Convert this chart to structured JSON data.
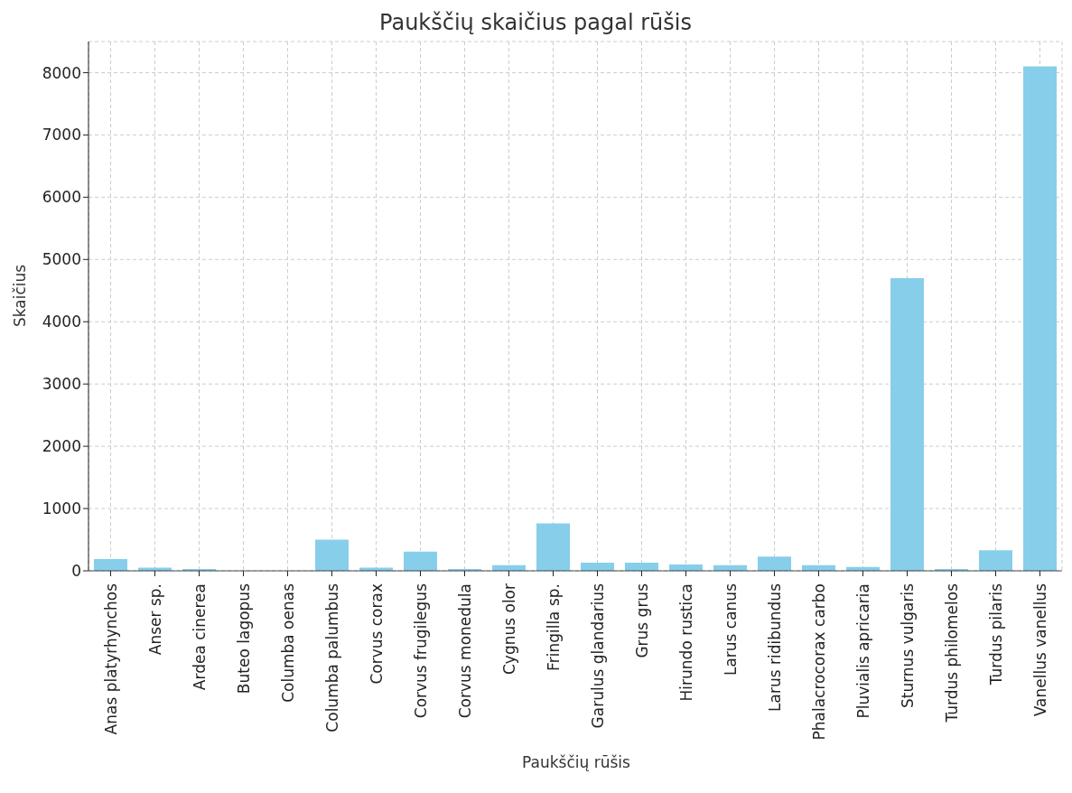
{
  "chart_data": {
    "type": "bar",
    "title": "Paukščių skaičius pagal rūšis",
    "xlabel": "Paukščių rūšis",
    "ylabel": "Skaičius",
    "categories": [
      "Anas platyrhynchos",
      "Anser sp.",
      "Ardea cinerea",
      "Buteo lagopus",
      "Columba oenas",
      "Columba palumbus",
      "Corvus corax",
      "Corvus frugilegus",
      "Corvus monedula",
      "Cygnus olor",
      "Fringilla sp.",
      "Garulus glandarius",
      "Grus grus",
      "Hirundo rustica",
      "Larus canus",
      "Larus ridibundus",
      "Phalacrocorax carbo",
      "Pluvialis apricaria",
      "Sturnus vulgaris",
      "Turdus philomelos",
      "Turdus pilaris",
      "Vanellus vanellus"
    ],
    "values": [
      190,
      50,
      30,
      0,
      0,
      500,
      50,
      310,
      30,
      90,
      760,
      130,
      130,
      100,
      90,
      230,
      90,
      60,
      4700,
      30,
      330,
      8100
    ],
    "color": "#87ceeb",
    "ylim": [
      0,
      8500
    ],
    "yticks": [
      0,
      1000,
      2000,
      3000,
      4000,
      5000,
      6000,
      7000,
      8000
    ],
    "grid": true
  }
}
